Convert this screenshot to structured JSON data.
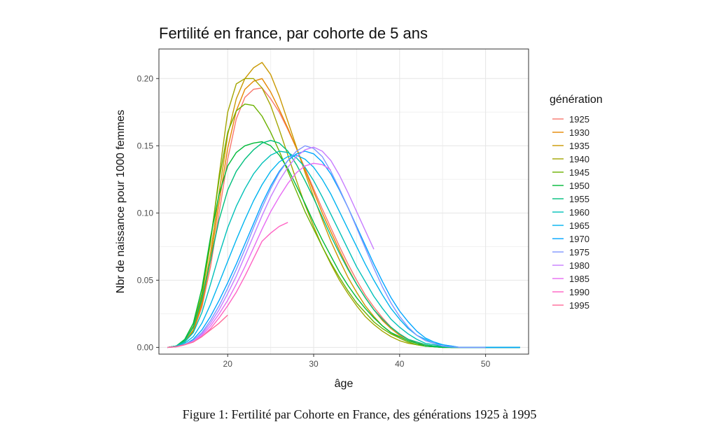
{
  "caption": "Figure 1: Fertilité par Cohorte en France, des générations 1925 à 1995",
  "chart_data": {
    "type": "line",
    "title": "Fertilité en france, par cohorte de 5 ans",
    "xlabel": "âge",
    "ylabel": "Nbr de naissance pour 1000 femmes",
    "xlim": [
      12,
      55
    ],
    "ylim": [
      -0.005,
      0.222
    ],
    "x_ticks": [
      20,
      30,
      40,
      50
    ],
    "x_tick_labels": [
      "20",
      "30",
      "40",
      "50"
    ],
    "y_ticks": [
      0,
      0.05,
      0.1,
      0.15,
      0.2
    ],
    "y_tick_labels": [
      "0.00",
      "0.05",
      "0.10",
      "0.15",
      "0.20"
    ],
    "grid": true,
    "legend_title": "génération",
    "legend_position": "right",
    "series": [
      {
        "name": "1925",
        "color": "#F8766D",
        "x": [
          13,
          14,
          15,
          16,
          17,
          18,
          19,
          20,
          21,
          22,
          23,
          24,
          25,
          26,
          27,
          28,
          29,
          30,
          31,
          32,
          33,
          34,
          35,
          36,
          37,
          38,
          39,
          40,
          41,
          42,
          43,
          44,
          45,
          46,
          47,
          48,
          49,
          50,
          51,
          52,
          53,
          54
        ],
        "y": [
          0,
          0.001,
          0.004,
          0.012,
          0.03,
          0.06,
          0.1,
          0.14,
          0.17,
          0.186,
          0.192,
          0.193,
          0.185,
          0.175,
          0.162,
          0.148,
          0.133,
          0.118,
          0.103,
          0.089,
          0.075,
          0.062,
          0.05,
          0.039,
          0.03,
          0.022,
          0.015,
          0.01,
          0.006,
          0.004,
          0.002,
          0.001,
          0.0005,
          0,
          0,
          0,
          0,
          0,
          0,
          0,
          0,
          0
        ]
      },
      {
        "name": "1930",
        "color": "#E58700",
        "x": [
          13,
          14,
          15,
          16,
          17,
          18,
          19,
          20,
          21,
          22,
          23,
          24,
          25,
          26,
          27,
          28,
          29,
          30,
          31,
          32,
          33,
          34,
          35,
          36,
          37,
          38,
          39,
          40,
          41,
          42,
          43,
          44,
          45,
          46,
          47,
          48,
          49,
          50,
          51,
          52,
          53,
          54
        ],
        "y": [
          0,
          0.001,
          0.004,
          0.012,
          0.032,
          0.065,
          0.108,
          0.148,
          0.176,
          0.192,
          0.198,
          0.2,
          0.19,
          0.177,
          0.163,
          0.148,
          0.132,
          0.116,
          0.1,
          0.086,
          0.072,
          0.059,
          0.047,
          0.037,
          0.028,
          0.02,
          0.014,
          0.009,
          0.006,
          0.003,
          0.002,
          0.001,
          0.0005,
          0,
          0,
          0,
          0,
          0,
          0,
          0,
          0,
          0
        ]
      },
      {
        "name": "1935",
        "color": "#C99800",
        "x": [
          13,
          14,
          15,
          16,
          17,
          18,
          19,
          20,
          21,
          22,
          23,
          24,
          25,
          26,
          27,
          28,
          29,
          30,
          31,
          32,
          33,
          34,
          35,
          36,
          37,
          38,
          39,
          40,
          41,
          42,
          43,
          44,
          45,
          46,
          47,
          48,
          49,
          50,
          51,
          52,
          53,
          54
        ],
        "y": [
          0,
          0.001,
          0.004,
          0.013,
          0.034,
          0.07,
          0.115,
          0.158,
          0.185,
          0.2,
          0.208,
          0.212,
          0.203,
          0.187,
          0.168,
          0.149,
          0.13,
          0.112,
          0.095,
          0.079,
          0.065,
          0.052,
          0.041,
          0.031,
          0.023,
          0.016,
          0.011,
          0.007,
          0.004,
          0.002,
          0.001,
          0.0005,
          0.0002,
          0,
          0,
          0,
          0,
          0,
          0,
          0,
          0,
          0
        ]
      },
      {
        "name": "1940",
        "color": "#A3A500",
        "x": [
          13,
          14,
          15,
          16,
          17,
          18,
          19,
          20,
          21,
          22,
          23,
          24,
          25,
          26,
          27,
          28,
          29,
          30,
          31,
          32,
          33,
          34,
          35,
          36,
          37,
          38,
          39,
          40,
          41,
          42,
          43,
          44,
          45,
          46,
          47,
          48,
          49,
          50,
          51,
          52,
          53,
          54
        ],
        "y": [
          0,
          0.001,
          0.005,
          0.015,
          0.038,
          0.078,
          0.128,
          0.175,
          0.196,
          0.2,
          0.2,
          0.193,
          0.18,
          0.162,
          0.143,
          0.124,
          0.106,
          0.09,
          0.075,
          0.062,
          0.05,
          0.04,
          0.031,
          0.023,
          0.017,
          0.012,
          0.008,
          0.005,
          0.003,
          0.002,
          0.001,
          0.0005,
          0,
          0,
          0,
          0,
          0,
          0,
          0,
          0,
          0,
          0
        ]
      },
      {
        "name": "1945",
        "color": "#6BB100",
        "x": [
          13,
          14,
          15,
          16,
          17,
          18,
          19,
          20,
          21,
          22,
          23,
          24,
          25,
          26,
          27,
          28,
          29,
          30,
          31,
          32,
          33,
          34,
          35,
          36,
          37,
          38,
          39,
          40,
          41,
          42,
          43,
          44,
          45,
          46,
          47,
          48,
          49,
          50,
          51,
          52,
          53,
          54
        ],
        "y": [
          0,
          0.001,
          0.005,
          0.016,
          0.04,
          0.08,
          0.125,
          0.16,
          0.176,
          0.181,
          0.18,
          0.172,
          0.16,
          0.146,
          0.131,
          0.116,
          0.101,
          0.088,
          0.075,
          0.063,
          0.052,
          0.042,
          0.033,
          0.026,
          0.019,
          0.014,
          0.01,
          0.007,
          0.004,
          0.002,
          0.001,
          0.0005,
          0,
          0,
          0,
          0,
          0,
          0,
          0,
          0,
          0,
          0
        ]
      },
      {
        "name": "1950",
        "color": "#00BA38",
        "x": [
          13,
          14,
          15,
          16,
          17,
          18,
          19,
          20,
          21,
          22,
          23,
          24,
          25,
          26,
          27,
          28,
          29,
          30,
          31,
          32,
          33,
          34,
          35,
          36,
          37,
          38,
          39,
          40,
          41,
          42,
          43,
          44,
          45,
          46,
          47,
          48,
          49,
          50,
          51,
          52,
          53,
          54
        ],
        "y": [
          0,
          0.001,
          0.006,
          0.018,
          0.044,
          0.082,
          0.114,
          0.135,
          0.145,
          0.15,
          0.152,
          0.153,
          0.15,
          0.143,
          0.133,
          0.12,
          0.107,
          0.093,
          0.08,
          0.068,
          0.056,
          0.046,
          0.037,
          0.029,
          0.022,
          0.016,
          0.011,
          0.008,
          0.005,
          0.003,
          0.001,
          0.0005,
          0,
          0,
          0,
          0,
          0,
          0,
          0,
          0,
          0,
          0
        ]
      },
      {
        "name": "1955",
        "color": "#00BF7D",
        "x": [
          13,
          14,
          15,
          16,
          17,
          18,
          19,
          20,
          21,
          22,
          23,
          24,
          25,
          26,
          27,
          28,
          29,
          30,
          31,
          32,
          33,
          34,
          35,
          36,
          37,
          38,
          39,
          40,
          41,
          42,
          43,
          44,
          45,
          46,
          47,
          48,
          49,
          50,
          51,
          52,
          53,
          54
        ],
        "y": [
          0,
          0.001,
          0.005,
          0.015,
          0.036,
          0.065,
          0.095,
          0.117,
          0.131,
          0.14,
          0.147,
          0.152,
          0.154,
          0.152,
          0.146,
          0.136,
          0.124,
          0.111,
          0.097,
          0.083,
          0.07,
          0.058,
          0.047,
          0.037,
          0.028,
          0.021,
          0.015,
          0.01,
          0.006,
          0.004,
          0.002,
          0.001,
          0.0005,
          0,
          0,
          0,
          0,
          0,
          0,
          0,
          0,
          0
        ]
      },
      {
        "name": "1960",
        "color": "#00C0B8",
        "x": [
          13,
          14,
          15,
          16,
          17,
          18,
          19,
          20,
          21,
          22,
          23,
          24,
          25,
          26,
          27,
          28,
          29,
          30,
          31,
          32,
          33,
          34,
          35,
          36,
          37,
          38,
          39,
          40,
          41,
          42,
          43,
          44,
          45,
          46,
          47,
          48,
          49,
          50,
          51,
          52,
          53,
          54
        ],
        "y": [
          0,
          0.001,
          0.004,
          0.011,
          0.026,
          0.047,
          0.069,
          0.089,
          0.105,
          0.118,
          0.129,
          0.137,
          0.143,
          0.146,
          0.145,
          0.141,
          0.134,
          0.124,
          0.112,
          0.099,
          0.086,
          0.073,
          0.06,
          0.049,
          0.038,
          0.029,
          0.021,
          0.015,
          0.01,
          0.006,
          0.003,
          0.002,
          0.001,
          0,
          0,
          0,
          0,
          0,
          0,
          0,
          0,
          0
        ]
      },
      {
        "name": "1965",
        "color": "#00B4EF",
        "x": [
          13,
          14,
          15,
          16,
          17,
          18,
          19,
          20,
          21,
          22,
          23,
          24,
          25,
          26,
          27,
          28,
          29,
          30,
          31,
          32,
          33,
          34,
          35,
          36,
          37,
          38,
          39,
          40,
          41,
          42,
          43,
          44,
          45,
          46,
          47,
          48,
          49,
          50,
          51,
          52,
          53,
          54
        ],
        "y": [
          0,
          0.0005,
          0.003,
          0.008,
          0.018,
          0.032,
          0.048,
          0.064,
          0.08,
          0.095,
          0.109,
          0.121,
          0.131,
          0.138,
          0.142,
          0.143,
          0.14,
          0.134,
          0.125,
          0.114,
          0.101,
          0.088,
          0.075,
          0.062,
          0.05,
          0.039,
          0.029,
          0.021,
          0.014,
          0.009,
          0.006,
          0.003,
          0.002,
          0.001,
          0,
          0,
          0,
          0,
          0,
          0,
          0,
          0
        ]
      },
      {
        "name": "1970",
        "color": "#00A5FF",
        "x": [
          13,
          14,
          15,
          16,
          17,
          18,
          19,
          20,
          21,
          22,
          23,
          24,
          25,
          26,
          27,
          28,
          29,
          30,
          31,
          32,
          33,
          34,
          35,
          36,
          37,
          38,
          39,
          40,
          41,
          42,
          43,
          44,
          45,
          46,
          47,
          48,
          49,
          50,
          51,
          52,
          53,
          54
        ],
        "y": [
          0,
          0.0005,
          0.002,
          0.006,
          0.013,
          0.023,
          0.035,
          0.048,
          0.062,
          0.077,
          0.092,
          0.107,
          0.12,
          0.131,
          0.139,
          0.144,
          0.146,
          0.144,
          0.138,
          0.129,
          0.117,
          0.104,
          0.09,
          0.076,
          0.062,
          0.049,
          0.037,
          0.027,
          0.019,
          0.012,
          0.007,
          0.004,
          0.002,
          0.001,
          0,
          0,
          0,
          0,
          0,
          0,
          0,
          0
        ]
      },
      {
        "name": "1975",
        "color": "#7F96FF",
        "x": [
          13,
          14,
          15,
          16,
          17,
          18,
          19,
          20,
          21,
          22,
          23,
          24,
          25,
          26,
          27,
          28,
          29,
          30,
          31,
          32,
          33,
          34,
          35,
          36,
          37,
          38,
          39,
          40,
          41,
          42,
          43,
          44,
          45,
          46,
          47,
          48,
          49,
          50
        ],
        "y": [
          0,
          0.0005,
          0.002,
          0.005,
          0.011,
          0.02,
          0.031,
          0.044,
          0.058,
          0.073,
          0.089,
          0.104,
          0.118,
          0.13,
          0.139,
          0.146,
          0.15,
          0.148,
          0.142,
          0.131,
          0.118,
          0.104,
          0.089,
          0.074,
          0.059,
          0.045,
          0.033,
          0.023,
          0.015,
          0.009,
          0.005,
          0.003,
          0.001,
          0.0005,
          0,
          0,
          0,
          0
        ]
      },
      {
        "name": "1980",
        "color": "#C77CFF",
        "x": [
          13,
          14,
          15,
          16,
          17,
          18,
          19,
          20,
          21,
          22,
          23,
          24,
          25,
          26,
          27,
          28,
          29,
          30,
          31,
          32,
          33,
          34,
          35,
          36,
          37
        ],
        "y": [
          0,
          0.0005,
          0.002,
          0.005,
          0.01,
          0.018,
          0.028,
          0.04,
          0.053,
          0.068,
          0.083,
          0.098,
          0.112,
          0.124,
          0.134,
          0.142,
          0.147,
          0.149,
          0.146,
          0.139,
          0.128,
          0.115,
          0.101,
          0.087,
          0.073
        ]
      },
      {
        "name": "1985",
        "color": "#E76BF3",
        "x": [
          13,
          14,
          15,
          16,
          17,
          18,
          19,
          20,
          21,
          22,
          23,
          24,
          25,
          26,
          27,
          28,
          29,
          30,
          31,
          32
        ],
        "y": [
          0,
          0.0005,
          0.002,
          0.004,
          0.009,
          0.016,
          0.025,
          0.035,
          0.047,
          0.06,
          0.074,
          0.088,
          0.101,
          0.112,
          0.122,
          0.13,
          0.135,
          0.137,
          0.136,
          0.132
        ]
      },
      {
        "name": "1990",
        "color": "#FF61C3",
        "x": [
          13,
          14,
          15,
          16,
          17,
          18,
          19,
          20,
          21,
          22,
          23,
          24,
          25,
          26,
          27
        ],
        "y": [
          0,
          0.0005,
          0.002,
          0.004,
          0.008,
          0.014,
          0.022,
          0.031,
          0.041,
          0.053,
          0.066,
          0.079,
          0.085,
          0.09,
          0.093
        ]
      },
      {
        "name": "1995",
        "color": "#FF6A98",
        "x": [
          13,
          14,
          15,
          16,
          17,
          18,
          19,
          20
        ],
        "y": [
          0,
          0.0005,
          0.002,
          0.004,
          0.008,
          0.013,
          0.018,
          0.024
        ]
      }
    ]
  }
}
